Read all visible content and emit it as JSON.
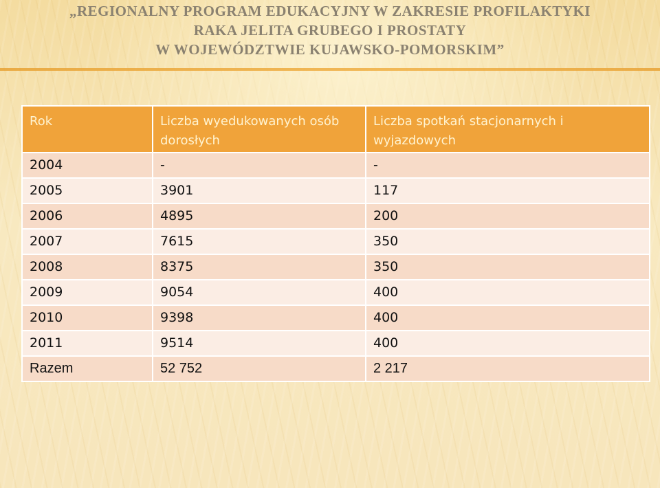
{
  "title": {
    "line1": "„REGIONALNY PROGRAM EDUKACYJNY W ZAKRESIE PROFILAKTYKI",
    "line2": "RAKA JELITA GRUBEGO I PROSTATY",
    "line3": "W WOJEWÓDZTWIE KUJAWSKO-POMORSKIM”"
  },
  "table": {
    "headers": [
      "Rok",
      "Liczba wyedukowanych osób dorosłych",
      "Liczba spotkań stacjonarnych i wyjazdowych"
    ],
    "rows": [
      [
        "2004",
        "-",
        "-"
      ],
      [
        "2005",
        "3901",
        "117"
      ],
      [
        "2006",
        "4895",
        "200"
      ],
      [
        "2007",
        "7615",
        "350"
      ],
      [
        "2008",
        "8375",
        "350"
      ],
      [
        "2009",
        "9054",
        "400"
      ],
      [
        "2010",
        "9398",
        "400"
      ],
      [
        "2011",
        "9514",
        "400"
      ],
      [
        "Razem",
        "52 752",
        "2 217"
      ]
    ]
  },
  "colors": {
    "header_bg": "#f0a33a",
    "header_text": "#fff3d0",
    "row_odd": "#f7dbc8",
    "row_even": "#fbede4",
    "title_text": "#8a8170"
  }
}
